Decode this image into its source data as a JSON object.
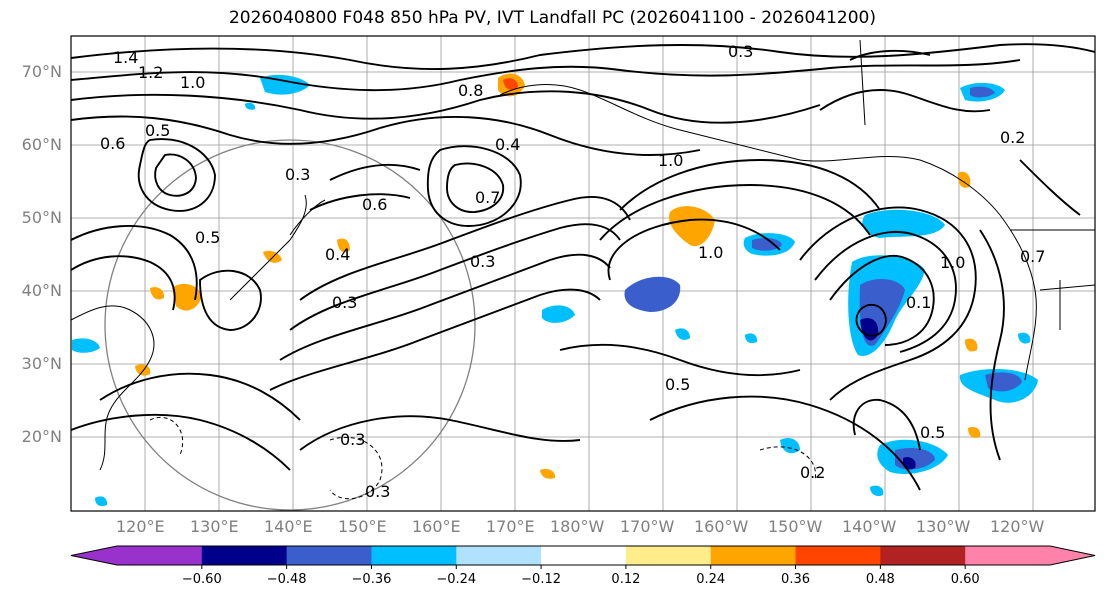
{
  "title": "2026040800 F048 850 hPa PV, IVT Landfall PC (2026041100 - 2026041200)",
  "lat_labels": [
    "70°N",
    "60°N",
    "50°N",
    "40°N",
    "30°N",
    "20°N"
  ],
  "lon_labels": [
    "120°E",
    "130°E",
    "140°E",
    "150°E",
    "160°E",
    "170°E",
    "180°W",
    "170°W",
    "160°W",
    "150°W",
    "140°W",
    "130°W",
    "120°W"
  ],
  "contour_labels": [
    "1.4",
    "1.2",
    "1.0",
    "0.8",
    "0.6",
    "0.5",
    "0.4",
    "0.3",
    "0.7",
    "0.2",
    "0.1"
  ],
  "colorbar": {
    "ticks": [
      "−0.60",
      "−0.48",
      "−0.36",
      "−0.24",
      "−0.12",
      "0.12",
      "0.24",
      "0.36",
      "0.48",
      "0.60"
    ],
    "colors": [
      "#9932cc",
      "#00008b",
      "#3a5fcd",
      "#00bfff",
      "#b0e2ff",
      "#ffffff",
      "#ffec8b",
      "#ffa500",
      "#ff4500",
      "#b22222",
      "#ff82ab"
    ]
  },
  "shading_colors": {
    "neg_light": "#00bfff",
    "neg_mid": "#3a5fcd",
    "neg_dark": "#00008b",
    "pos_light": "#ffa500",
    "pos_mid": "#ff4500",
    "pos_dark": "#b22222"
  }
}
